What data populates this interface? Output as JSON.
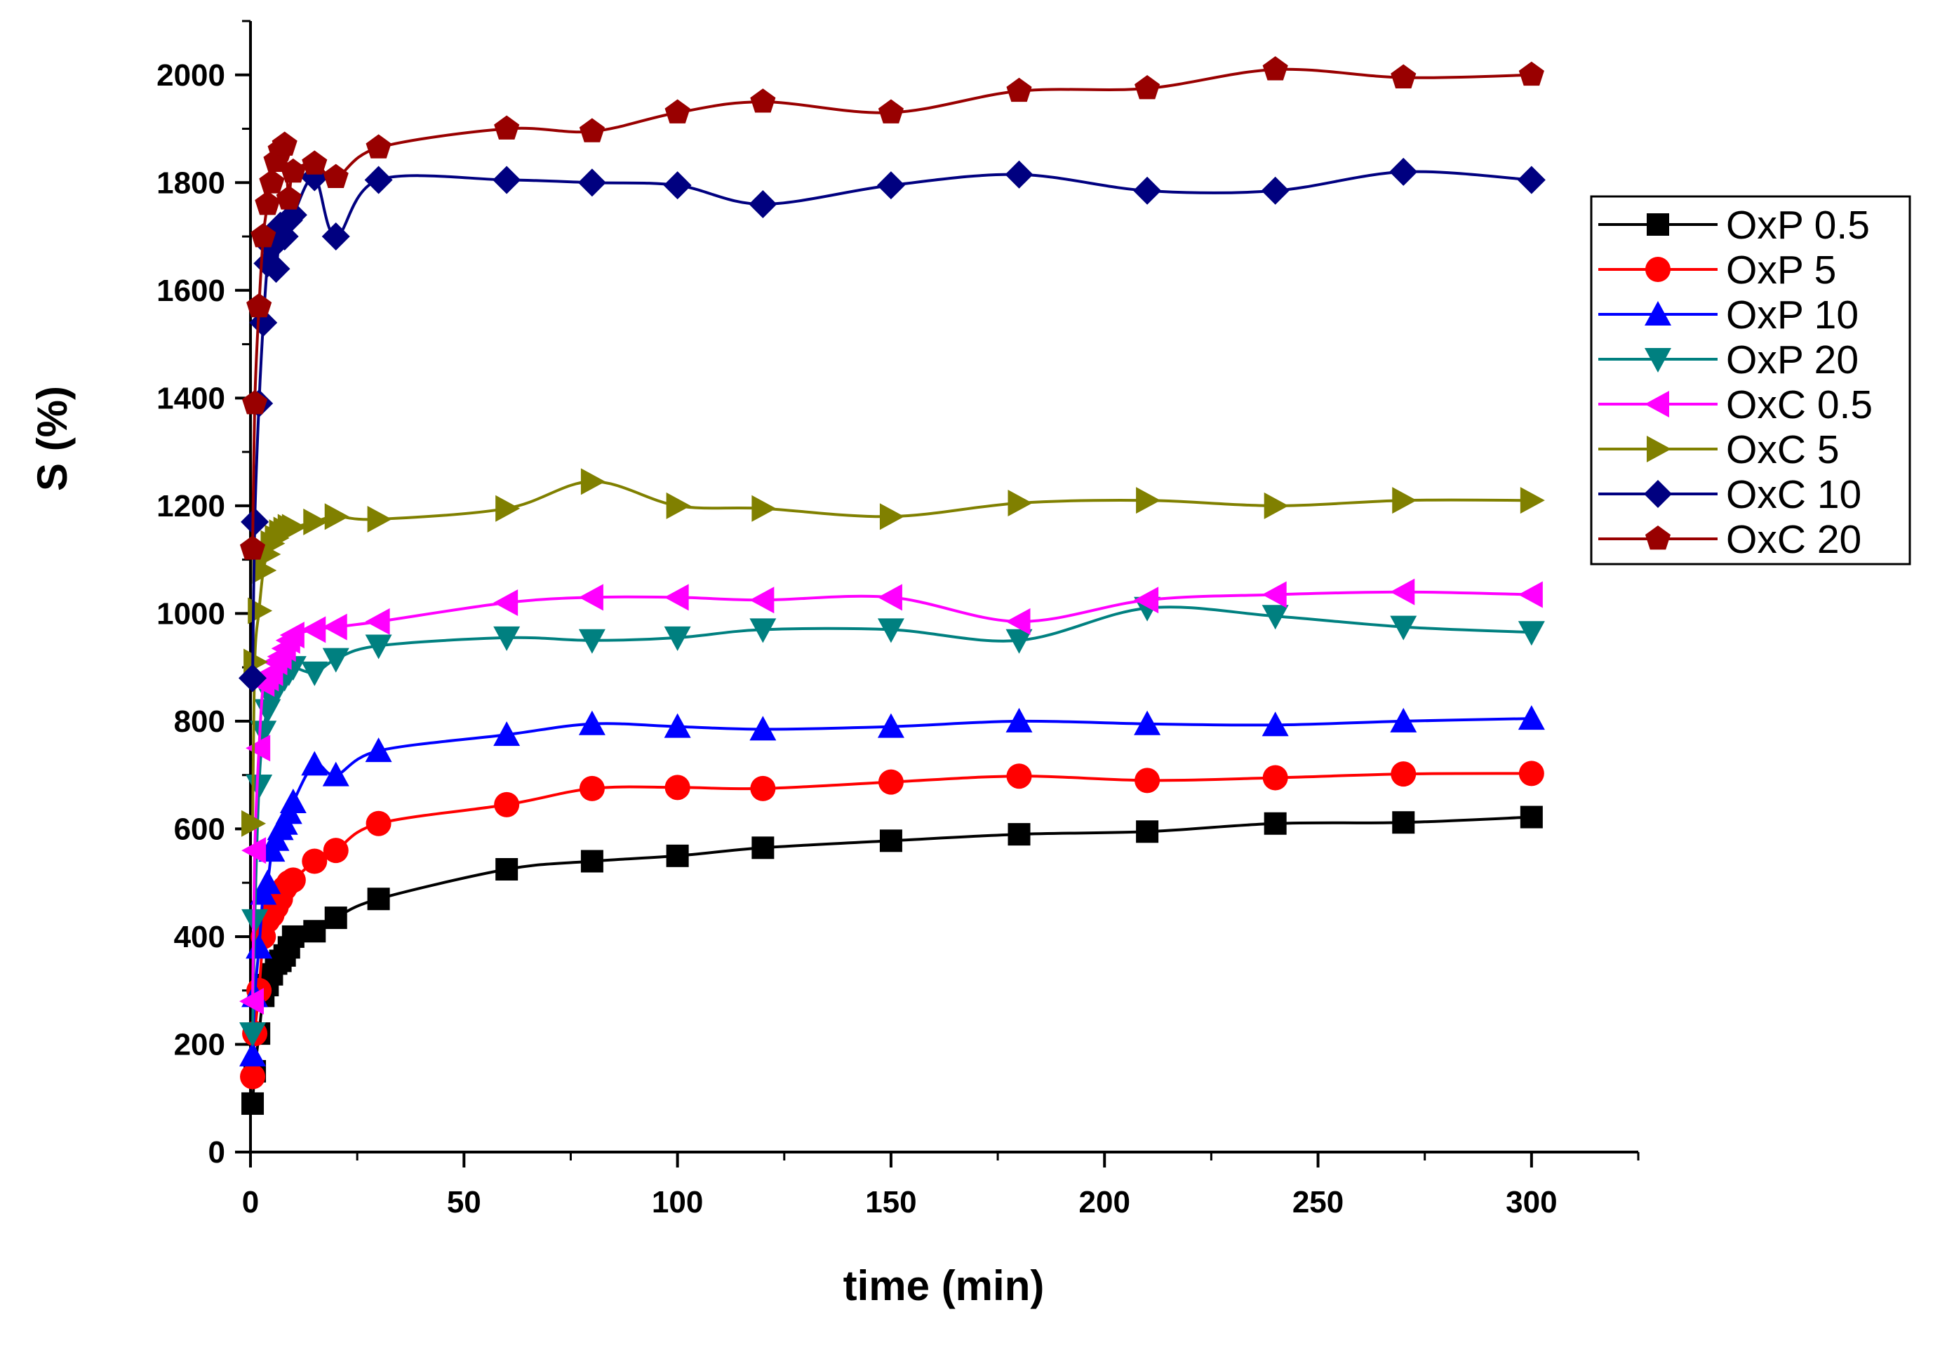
{
  "chart_data": {
    "type": "line",
    "title": "",
    "xlabel": "time (min)",
    "ylabel": "S (%)",
    "xlim": [
      0,
      325
    ],
    "ylim": [
      0,
      2100
    ],
    "x_ticks": [
      0,
      50,
      100,
      150,
      200,
      250,
      300
    ],
    "y_ticks": [
      0,
      200,
      400,
      600,
      800,
      1000,
      1200,
      1400,
      1600,
      1800,
      2000
    ],
    "legend_position": "right",
    "series": [
      {
        "name": "OxP 0.5",
        "color": "#000000",
        "marker": "square",
        "x": [
          0.5,
          1,
          2,
          3,
          4,
          5,
          6,
          7,
          8,
          9,
          10,
          15,
          20,
          30,
          60,
          80,
          100,
          120,
          150,
          180,
          210,
          240,
          270,
          300
        ],
        "y": [
          90,
          150,
          220,
          290,
          310,
          330,
          350,
          355,
          365,
          380,
          400,
          410,
          435,
          470,
          525,
          540,
          550,
          565,
          578,
          590,
          595,
          610,
          612,
          622
        ]
      },
      {
        "name": "OxP 5",
        "color": "#ff0000",
        "marker": "circle",
        "x": [
          0.5,
          1,
          2,
          3,
          4,
          5,
          6,
          7,
          8,
          9,
          10,
          15,
          20,
          30,
          60,
          80,
          100,
          120,
          150,
          180,
          210,
          240,
          270,
          300
        ],
        "y": [
          140,
          220,
          300,
          400,
          430,
          440,
          455,
          470,
          490,
          500,
          505,
          540,
          560,
          610,
          645,
          675,
          677,
          675,
          687,
          698,
          690,
          695,
          702,
          703
        ]
      },
      {
        "name": "OxP 10",
        "color": "#0000ff",
        "marker": "triangle-up",
        "x": [
          0.5,
          1,
          2,
          3,
          4,
          5,
          6,
          7,
          8,
          9,
          10,
          15,
          20,
          30,
          60,
          80,
          100,
          120,
          150,
          180,
          210,
          240,
          270,
          300
        ],
        "y": [
          180,
          290,
          380,
          480,
          500,
          560,
          580,
          600,
          610,
          630,
          650,
          720,
          700,
          745,
          775,
          795,
          790,
          785,
          790,
          800,
          795,
          793,
          800,
          805
        ]
      },
      {
        "name": "OxP 20",
        "color": "#008080",
        "marker": "triangle-down",
        "x": [
          0.5,
          1,
          2,
          3,
          4,
          5,
          6,
          7,
          8,
          9,
          10,
          15,
          20,
          30,
          60,
          80,
          100,
          120,
          150,
          180,
          210,
          240,
          270,
          300
        ],
        "y": [
          220,
          430,
          680,
          780,
          820,
          840,
          860,
          870,
          880,
          890,
          900,
          890,
          915,
          940,
          955,
          950,
          955,
          970,
          970,
          950,
          1010,
          995,
          975,
          965
        ]
      },
      {
        "name": "OxC 0.5",
        "color": "#ff00ff",
        "marker": "triangle-left",
        "x": [
          0.5,
          1,
          2,
          3,
          4,
          5,
          6,
          7,
          8,
          9,
          10,
          15,
          20,
          30,
          60,
          80,
          100,
          120,
          150,
          180,
          210,
          240,
          270,
          300
        ],
        "y": [
          280,
          560,
          750,
          870,
          880,
          890,
          910,
          920,
          935,
          950,
          960,
          970,
          975,
          985,
          1020,
          1030,
          1030,
          1025,
          1030,
          985,
          1025,
          1035,
          1040,
          1035
        ]
      },
      {
        "name": "OxC 5",
        "color": "#808000",
        "marker": "triangle-right",
        "x": [
          0.5,
          1,
          2,
          3,
          4,
          5,
          6,
          7,
          8,
          9,
          10,
          15,
          20,
          30,
          60,
          80,
          100,
          120,
          150,
          180,
          210,
          240,
          270,
          300
        ],
        "y": [
          610,
          910,
          1005,
          1080,
          1110,
          1130,
          1140,
          1150,
          1155,
          1160,
          1160,
          1170,
          1180,
          1175,
          1195,
          1245,
          1200,
          1195,
          1180,
          1205,
          1210,
          1200,
          1210,
          1210
        ]
      },
      {
        "name": "OxC 10",
        "color": "#000080",
        "marker": "diamond",
        "x": [
          0.5,
          1,
          2,
          3,
          4,
          5,
          6,
          7,
          8,
          9,
          10,
          15,
          20,
          30,
          60,
          80,
          100,
          120,
          150,
          180,
          210,
          240,
          270,
          300
        ],
        "y": [
          880,
          1170,
          1390,
          1540,
          1650,
          1680,
          1640,
          1720,
          1700,
          1730,
          1740,
          1810,
          1700,
          1805,
          1805,
          1800,
          1795,
          1760,
          1795,
          1815,
          1785,
          1785,
          1820,
          1805
        ]
      },
      {
        "name": "OxC 20",
        "color": "#990000",
        "marker": "pentagon",
        "x": [
          0.5,
          1,
          2,
          3,
          4,
          5,
          6,
          7,
          8,
          9,
          10,
          15,
          20,
          30,
          60,
          80,
          100,
          120,
          150,
          180,
          210,
          240,
          270,
          300
        ],
        "y": [
          1120,
          1390,
          1570,
          1700,
          1760,
          1800,
          1840,
          1860,
          1870,
          1770,
          1820,
          1835,
          1810,
          1865,
          1900,
          1895,
          1930,
          1950,
          1930,
          1970,
          1975,
          2010,
          1995,
          2000
        ]
      }
    ]
  }
}
